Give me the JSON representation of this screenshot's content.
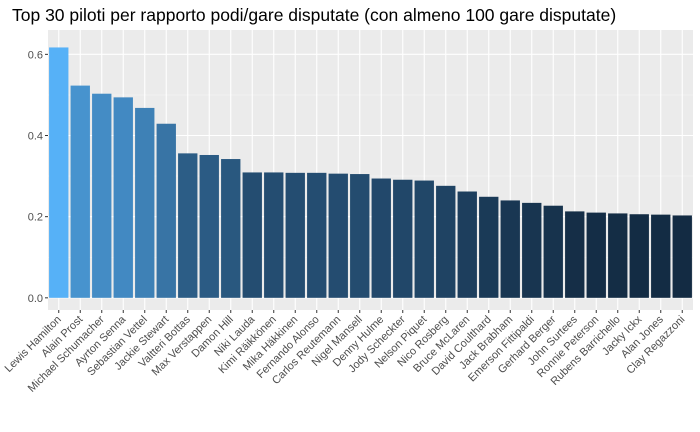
{
  "chart_data": {
    "type": "bar",
    "title": "Top 30 piloti per rapporto podi/gare disputate (con almeno 100 gare disputate)",
    "xlabel": "",
    "ylabel": "",
    "ylim": [
      -0.03,
      0.66
    ],
    "yticks": [
      "0.0",
      "0.2",
      "0.4",
      "0.6"
    ],
    "grid": true,
    "legend": "none",
    "color_low": "#132B43",
    "color_high": "#56B1F7",
    "categories": [
      "Lewis Hamilton",
      "Alain Prost",
      "Michael Schumacher",
      "Ayrton Senna",
      "Sebastian Vettel",
      "Jackie Stewart",
      "Valtteri Bottas",
      "Max Verstappen",
      "Damon Hill",
      "Niki Lauda",
      "Kimi Räikkönen",
      "Mika Häkkinen",
      "Fernando Alonso",
      "Carlos Reutemann",
      "Nigel Mansell",
      "Denny Hulme",
      "Jody Scheckter",
      "Nelson Piquet",
      "Nico Rosberg",
      "Bruce McLaren",
      "David Coulthard",
      "Jack Brabham",
      "Emerson Fittipaldi",
      "Gerhard Berger",
      "John Surtees",
      "Ronnie Peterson",
      "Rubens Barrichello",
      "Jacky Ickx",
      "Alan Jones",
      "Clay Regazzoni"
    ],
    "values": [
      0.617,
      0.523,
      0.503,
      0.494,
      0.468,
      0.429,
      0.356,
      0.352,
      0.342,
      0.309,
      0.309,
      0.308,
      0.308,
      0.306,
      0.305,
      0.294,
      0.291,
      0.289,
      0.276,
      0.262,
      0.249,
      0.24,
      0.234,
      0.227,
      0.213,
      0.21,
      0.208,
      0.206,
      0.205,
      0.203
    ]
  }
}
